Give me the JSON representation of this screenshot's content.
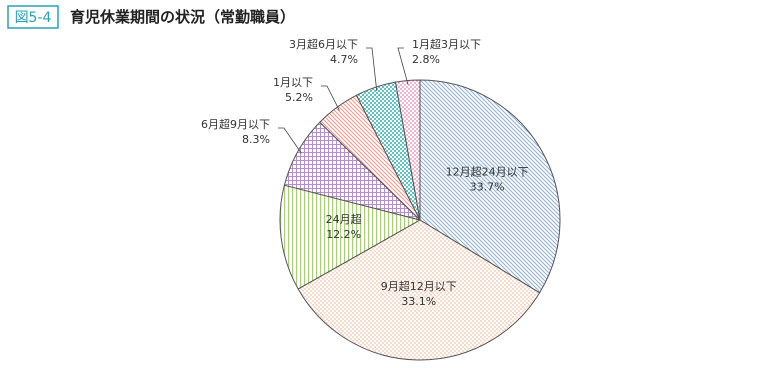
{
  "chart_data": {
    "type": "pie",
    "figure_label": "図5-4",
    "title": "育児休業期間の状況（常勤職員）",
    "categories": [
      "12月超24月以下",
      "9月超12月以下",
      "24月超",
      "6月超9月以下",
      "1月以下",
      "3月超6月以下",
      "1月超3月以下"
    ],
    "values": [
      33.7,
      33.1,
      12.2,
      8.3,
      5.2,
      4.7,
      2.8
    ],
    "value_labels": [
      "33.7%",
      "33.1%",
      "12.2%",
      "8.3%",
      "5.2%",
      "4.7%",
      "2.8%"
    ],
    "colors": [
      "#8fb0d8",
      "#f2a77a",
      "#a8cf78",
      "#b58fc8",
      "#f0968a",
      "#5cc5c8",
      "#ef80a8"
    ]
  }
}
